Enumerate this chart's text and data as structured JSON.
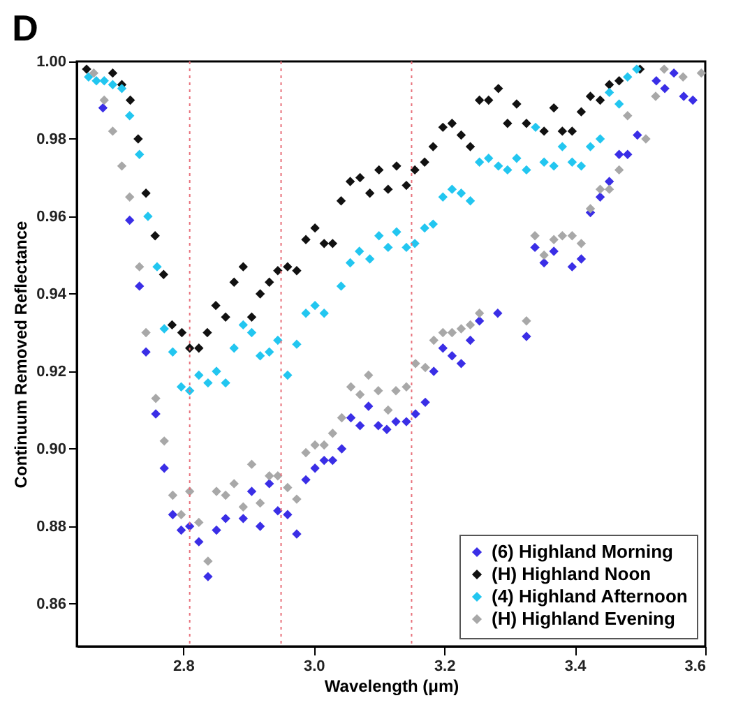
{
  "chart_data": {
    "type": "scatter",
    "title": "D",
    "xlabel": "Wavelength (μm)",
    "ylabel": "Continuum Removed Reflectance",
    "xlim": [
      2.637,
      3.6
    ],
    "ylim": [
      0.849,
      1.0
    ],
    "xticks": [
      2.8,
      {
        "value": 3.0,
        "label": "3.0"
      },
      3.2,
      3.4,
      3.6
    ],
    "yticks": [
      0.86,
      0.88,
      {
        "value": 0.9,
        "label": "0.90"
      },
      0.92,
      0.94,
      0.96,
      0.98,
      {
        "value": 1.0,
        "label": "1.00"
      }
    ],
    "grid": false,
    "legend": "bottom right",
    "marker": "diamond",
    "ref_lines": [
      {
        "axis": "x",
        "value": 2.81,
        "color": "#e8707a",
        "line_style": "dotted"
      },
      {
        "axis": "x",
        "value": 2.95,
        "color": "#e8707a",
        "line_style": "dotted"
      },
      {
        "axis": "x",
        "value": 3.15,
        "color": "#e8707a",
        "line_style": "dotted"
      }
    ],
    "series": [
      {
        "name": "(6) Highland Morning",
        "color": "#3a2ee6",
        "x": [
          2.677,
          2.718,
          2.733,
          2.743,
          2.758,
          2.771,
          2.784,
          2.797,
          2.81,
          2.824,
          2.838,
          2.851,
          2.865,
          2.892,
          2.905,
          2.918,
          2.932,
          2.945,
          2.96,
          2.974,
          2.988,
          3.002,
          3.016,
          3.029,
          3.043,
          3.057,
          3.071,
          3.084,
          3.099,
          3.112,
          3.126,
          3.142,
          3.156,
          3.171,
          3.184,
          3.198,
          3.212,
          3.226,
          3.24,
          3.254,
          3.282,
          3.326,
          3.339,
          3.353,
          3.368,
          3.381,
          3.396,
          3.41,
          3.424,
          3.439,
          3.453,
          3.468,
          3.481,
          3.496,
          3.525,
          3.538,
          3.552,
          3.567,
          3.581
        ],
        "values": [
          0.988,
          0.959,
          0.942,
          0.925,
          0.909,
          0.895,
          0.883,
          0.879,
          0.88,
          0.876,
          0.867,
          0.879,
          0.882,
          0.882,
          0.889,
          0.88,
          0.891,
          0.884,
          0.883,
          0.878,
          0.892,
          0.895,
          0.897,
          0.897,
          0.9,
          0.908,
          0.906,
          0.911,
          0.906,
          0.905,
          0.907,
          0.907,
          0.909,
          0.912,
          0.92,
          0.926,
          0.924,
          0.922,
          0.928,
          0.933,
          0.935,
          0.929,
          0.952,
          0.948,
          0.951,
          null,
          0.947,
          0.949,
          0.961,
          0.965,
          0.969,
          0.976,
          0.976,
          0.981,
          0.995,
          0.993,
          0.997,
          0.991,
          0.99
        ]
      },
      {
        "name": "(H) Highland Noon",
        "color": "#111111",
        "x": [
          2.652,
          2.692,
          2.706,
          2.719,
          2.731,
          2.743,
          2.757,
          2.77,
          2.783,
          2.798,
          2.81,
          2.824,
          2.837,
          2.85,
          2.865,
          2.878,
          2.892,
          2.905,
          2.918,
          2.932,
          2.945,
          2.96,
          2.974,
          2.988,
          3.002,
          3.016,
          3.029,
          3.042,
          3.056,
          3.071,
          3.086,
          3.1,
          3.114,
          3.127,
          3.142,
          3.155,
          3.17,
          3.183,
          3.198,
          3.212,
          3.226,
          3.24,
          3.254,
          3.268,
          3.283,
          3.297,
          3.311,
          3.326,
          3.353,
          3.368,
          3.381,
          3.396,
          3.41,
          3.424,
          3.439,
          3.453,
          3.468,
          3.5
        ],
        "values": [
          0.998,
          0.997,
          0.994,
          0.99,
          0.98,
          0.966,
          0.955,
          0.945,
          0.932,
          0.93,
          0.926,
          0.926,
          0.93,
          0.937,
          0.934,
          0.943,
          0.947,
          0.934,
          0.94,
          0.943,
          0.946,
          0.947,
          0.946,
          0.954,
          0.957,
          0.953,
          0.953,
          0.964,
          0.969,
          0.97,
          0.966,
          0.972,
          0.967,
          0.973,
          0.968,
          0.972,
          0.974,
          0.978,
          0.983,
          0.984,
          0.981,
          0.978,
          0.99,
          0.99,
          0.993,
          0.984,
          0.989,
          0.984,
          0.982,
          0.988,
          0.982,
          0.982,
          0.987,
          0.991,
          0.99,
          0.994,
          0.995,
          0.998
        ]
      },
      {
        "name": "(4) Highland Afternoon",
        "color": "#22c6f0",
        "x": [
          2.655,
          2.667,
          2.679,
          2.692,
          2.706,
          2.718,
          2.733,
          2.746,
          2.76,
          2.771,
          2.784,
          2.797,
          2.81,
          2.824,
          2.838,
          2.851,
          2.865,
          2.878,
          2.892,
          2.905,
          2.918,
          2.932,
          2.945,
          2.96,
          2.974,
          2.988,
          3.002,
          3.016,
          3.042,
          3.056,
          3.07,
          3.086,
          3.1,
          3.114,
          3.127,
          3.142,
          3.155,
          3.17,
          3.183,
          3.198,
          3.212,
          3.226,
          3.24,
          3.254,
          3.268,
          3.283,
          3.297,
          3.311,
          3.326,
          3.34,
          3.353,
          3.368,
          3.381,
          3.396,
          3.41,
          3.424,
          3.439,
          3.453,
          3.468,
          3.481,
          3.495
        ],
        "values": [
          0.996,
          0.995,
          0.995,
          0.994,
          0.993,
          0.986,
          0.976,
          0.96,
          0.947,
          0.931,
          0.925,
          0.916,
          0.915,
          0.919,
          0.917,
          0.92,
          0.917,
          0.926,
          0.932,
          0.93,
          0.924,
          0.925,
          0.928,
          0.919,
          0.927,
          0.935,
          0.937,
          0.935,
          0.942,
          0.948,
          0.951,
          0.949,
          0.955,
          0.952,
          0.956,
          0.952,
          0.953,
          0.957,
          0.958,
          0.965,
          0.967,
          0.966,
          0.964,
          0.974,
          0.975,
          0.973,
          0.972,
          0.975,
          0.972,
          0.983,
          0.974,
          0.973,
          0.978,
          0.974,
          0.973,
          0.978,
          0.98,
          0.992,
          0.989,
          0.996,
          0.998
        ]
      },
      {
        "name": "(H) Highland Evening",
        "color": "#a8a8a8",
        "x": [
          2.663,
          2.679,
          2.692,
          2.706,
          2.718,
          2.733,
          2.743,
          2.758,
          2.771,
          2.784,
          2.797,
          2.81,
          2.824,
          2.838,
          2.851,
          2.865,
          2.878,
          2.892,
          2.905,
          2.918,
          2.932,
          2.945,
          2.96,
          2.974,
          2.988,
          3.002,
          3.016,
          3.029,
          3.043,
          3.057,
          3.071,
          3.084,
          3.099,
          3.114,
          3.126,
          3.142,
          3.156,
          3.171,
          3.184,
          3.198,
          3.212,
          3.226,
          3.24,
          3.254,
          3.326,
          3.339,
          3.353,
          3.368,
          3.381,
          3.396,
          3.41,
          3.424,
          3.439,
          3.453,
          3.468,
          3.481,
          3.509,
          3.524,
          3.537,
          3.566,
          3.594
        ],
        "values": [
          0.997,
          0.99,
          0.982,
          0.973,
          0.965,
          0.947,
          0.93,
          0.913,
          0.902,
          0.888,
          0.883,
          0.889,
          0.881,
          0.871,
          0.889,
          0.888,
          0.891,
          0.885,
          0.896,
          0.886,
          0.893,
          0.893,
          0.89,
          0.887,
          0.899,
          0.901,
          0.901,
          0.904,
          0.908,
          0.916,
          0.914,
          0.919,
          0.915,
          0.91,
          0.915,
          0.916,
          0.922,
          0.921,
          0.928,
          0.93,
          0.93,
          0.931,
          0.932,
          0.935,
          0.933,
          0.955,
          0.95,
          0.954,
          0.955,
          0.955,
          0.953,
          0.962,
          0.967,
          0.967,
          0.972,
          0.986,
          0.98,
          0.991,
          0.998,
          0.996,
          0.997
        ]
      }
    ]
  }
}
